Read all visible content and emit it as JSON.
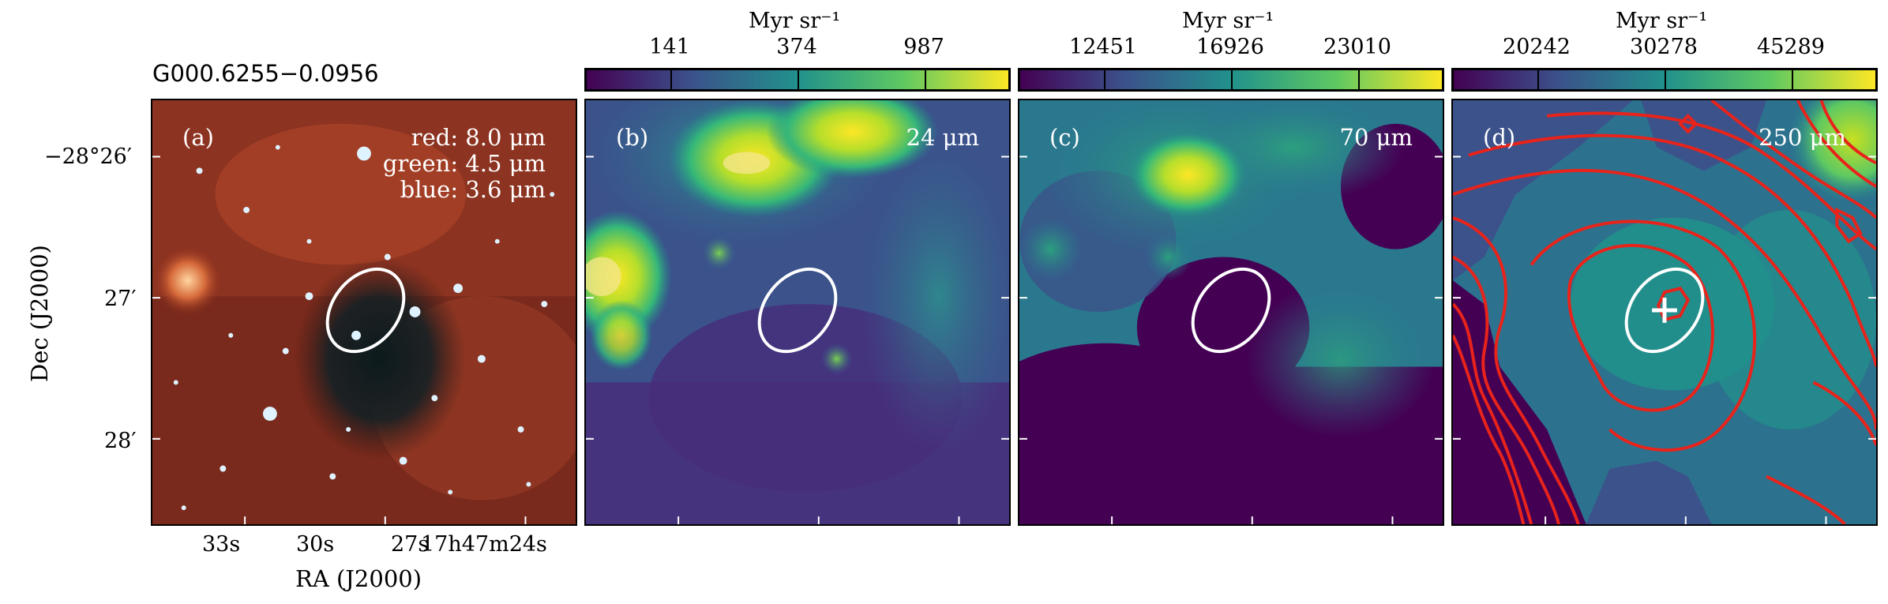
{
  "source_name": "G000.6255−0.0956",
  "axes": {
    "xlabel": "RA (J2000)",
    "ylabel": "Dec (J2000)",
    "xticks": [
      "33s",
      "30s",
      "27s",
      "17h47m24s"
    ],
    "yticks": [
      "−28°26′",
      "27′",
      "28′"
    ]
  },
  "panels": [
    {
      "id": "a",
      "label": "(a)",
      "rgb": [
        "red: 8.0 μm",
        "green: 4.5 μm",
        "blue: 3.6 μm"
      ]
    },
    {
      "id": "b",
      "label": "(b)",
      "wavelength": "24 μm",
      "colorbar": {
        "unit": "Myr sr⁻¹",
        "ticks": [
          "141",
          "374",
          "987"
        ]
      }
    },
    {
      "id": "c",
      "label": "(c)",
      "wavelength": "70 μm",
      "colorbar": {
        "unit": "Myr sr⁻¹",
        "ticks": [
          "12451",
          "16926",
          "23010"
        ]
      }
    },
    {
      "id": "d",
      "label": "(d)",
      "wavelength": "250 μm",
      "colorbar": {
        "unit": "Myr sr⁻¹",
        "ticks": [
          "20242",
          "30278",
          "45289"
        ]
      }
    }
  ],
  "colors": {
    "colormap": "viridis",
    "contour": "#e8231b",
    "ellipse": "#ffffff"
  }
}
